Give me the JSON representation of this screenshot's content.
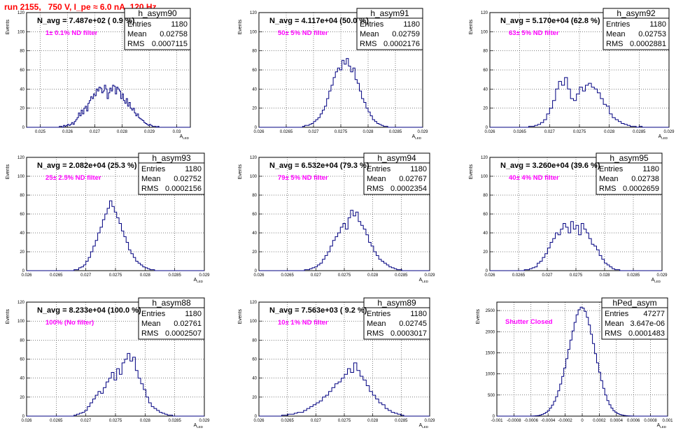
{
  "header": {
    "title": "run 2155,   750 V, I_pe ≈ 6.0 nA, 120 Hz"
  },
  "chart_data": [
    {
      "type": "histogram",
      "name": "h_asym90",
      "stats": {
        "entries": "1180",
        "mean": "0.02758",
        "rms": "0.0007115"
      },
      "annotation": "N_avg = 7.487e+02 ( 0.9 %)",
      "note": "1± 0.1% ND filter",
      "ylabel": "Events",
      "xlabel": "A_LED",
      "xlim": [
        0.0245,
        0.0305
      ],
      "ylim": [
        0,
        120
      ],
      "x_ticks": [
        "0.025",
        "0.026",
        "0.027",
        "0.028",
        "0.029",
        "0.03"
      ],
      "x_tick_values": [
        0.025,
        0.026,
        0.027,
        0.028,
        0.029,
        0.03
      ],
      "y_ticks": [
        "0",
        "20",
        "40",
        "60",
        "80",
        "100",
        "120"
      ],
      "y_tick_values": [
        0,
        20,
        40,
        60,
        80,
        100,
        120
      ],
      "bin_range": [
        0.0255,
        0.0295
      ],
      "values": [
        0,
        0,
        0,
        0,
        1,
        1,
        0,
        2,
        1,
        2,
        3,
        2,
        3,
        5,
        3,
        6,
        8,
        10,
        15,
        12,
        18,
        14,
        20,
        22,
        17,
        25,
        28,
        32,
        30,
        35,
        33,
        40,
        38,
        42,
        41,
        36,
        38,
        44,
        40,
        30,
        36,
        41,
        38,
        44,
        43,
        35,
        42,
        40,
        38,
        30,
        35,
        28,
        25,
        30,
        22,
        26,
        20,
        18,
        20,
        15,
        12,
        14,
        10,
        9,
        8,
        7,
        5,
        4,
        3,
        2,
        3,
        2,
        1,
        1,
        1,
        0,
        1,
        0,
        0,
        0
      ]
    },
    {
      "type": "histogram",
      "name": "h_asym91",
      "stats": {
        "entries": "1180",
        "mean": "0.02759",
        "rms": "0.0002176"
      },
      "annotation": "N_avg = 4.117e+04 (50.0 %)",
      "note": "50± 5% ND filter",
      "ylabel": "Events",
      "xlabel": "A_LED",
      "xlim": [
        0.026,
        0.029
      ],
      "ylim": [
        0,
        120
      ],
      "x_ticks": [
        "0.026",
        "0.0265",
        "0.027",
        "0.0275",
        "0.028",
        "0.0285",
        "0.029"
      ],
      "x_tick_values": [
        0.026,
        0.0265,
        0.027,
        0.0275,
        0.028,
        0.0285,
        0.029
      ],
      "y_ticks": [
        "0",
        "20",
        "40",
        "60",
        "80",
        "100",
        "120"
      ],
      "y_tick_values": [
        0,
        20,
        40,
        60,
        80,
        100,
        120
      ],
      "bin_range": [
        0.0268,
        0.0284
      ],
      "values": [
        1,
        2,
        2,
        3,
        4,
        6,
        8,
        10,
        14,
        18,
        22,
        30,
        38,
        44,
        52,
        58,
        62,
        60,
        70,
        66,
        72,
        64,
        58,
        62,
        50,
        46,
        38,
        30,
        26,
        20,
        16,
        12,
        8,
        6,
        4,
        3,
        2,
        1,
        1,
        0
      ]
    },
    {
      "type": "histogram",
      "name": "h_asym92",
      "stats": {
        "entries": "1180",
        "mean": "0.02753",
        "rms": "0.0002881"
      },
      "annotation": "N_avg = 5.170e+04 (62.8 %)",
      "note": "63± 5% ND filter",
      "ylabel": "Events",
      "xlabel": "A_LED",
      "xlim": [
        0.026,
        0.029
      ],
      "ylim": [
        0,
        120
      ],
      "x_ticks": [
        "0.026",
        "0.0265",
        "0.027",
        "0.0275",
        "0.028",
        "0.0285",
        "0.029"
      ],
      "x_tick_values": [
        0.026,
        0.0265,
        0.027,
        0.0275,
        0.028,
        0.0285,
        0.029
      ],
      "y_ticks": [
        "0",
        "20",
        "40",
        "60",
        "80",
        "100",
        "120"
      ],
      "y_tick_values": [
        0,
        20,
        40,
        60,
        80,
        100,
        120
      ],
      "bin_range": [
        0.0266,
        0.0286
      ],
      "values": [
        0,
        1,
        1,
        2,
        3,
        5,
        8,
        14,
        20,
        28,
        40,
        48,
        44,
        52,
        40,
        30,
        28,
        35,
        42,
        38,
        44,
        46,
        42,
        40,
        36,
        30,
        24,
        22,
        14,
        10,
        8,
        6,
        4,
        3,
        2,
        1,
        1,
        0,
        1,
        0
      ]
    },
    {
      "type": "histogram",
      "name": "h_asym93",
      "stats": {
        "entries": "1180",
        "mean": "0.02752",
        "rms": "0.0002156"
      },
      "annotation": "N_avg = 2.082e+04 (25.3 %)",
      "note": "25± 2.5% ND filter",
      "ylabel": "Events",
      "xlabel": "A_LED",
      "xlim": [
        0.026,
        0.029
      ],
      "ylim": [
        0,
        120
      ],
      "x_ticks": [
        "0.026",
        "0.0265",
        "0.027",
        "0.0275",
        "0.028",
        "0.0285",
        "0.029"
      ],
      "x_tick_values": [
        0.026,
        0.0265,
        0.027,
        0.0275,
        0.028,
        0.0285,
        0.029
      ],
      "y_ticks": [
        "0",
        "20",
        "40",
        "60",
        "80",
        "100",
        "120"
      ],
      "y_tick_values": [
        0,
        20,
        40,
        60,
        80,
        100,
        120
      ],
      "bin_range": [
        0.0268,
        0.0284
      ],
      "values": [
        1,
        1,
        3,
        4,
        6,
        10,
        14,
        20,
        26,
        32,
        40,
        46,
        54,
        60,
        66,
        74,
        68,
        62,
        56,
        50,
        42,
        36,
        30,
        22,
        18,
        14,
        10,
        8,
        6,
        4,
        3,
        2,
        1,
        1,
        0,
        0,
        0,
        0,
        0,
        0
      ]
    },
    {
      "type": "histogram",
      "name": "h_asym94",
      "stats": {
        "entries": "1180",
        "mean": "0.02767",
        "rms": "0.0002354"
      },
      "annotation": "N_avg = 6.532e+04 (79.3 %)",
      "note": "79± 5% ND filter",
      "ylabel": "Events",
      "xlabel": "A_LED",
      "xlim": [
        0.026,
        0.029
      ],
      "ylim": [
        0,
        120
      ],
      "x_ticks": [
        "0.026",
        "0.0265",
        "0.027",
        "0.0275",
        "0.028",
        "0.0285",
        "0.029"
      ],
      "x_tick_values": [
        0.026,
        0.0265,
        0.027,
        0.0275,
        0.028,
        0.0285,
        0.029
      ],
      "y_ticks": [
        "0",
        "20",
        "40",
        "60",
        "80",
        "100",
        "120"
      ],
      "y_tick_values": [
        0,
        20,
        40,
        60,
        80,
        100,
        120
      ],
      "bin_range": [
        0.0268,
        0.0286
      ],
      "values": [
        1,
        1,
        2,
        3,
        4,
        6,
        8,
        12,
        16,
        20,
        26,
        32,
        36,
        40,
        46,
        50,
        44,
        56,
        64,
        58,
        62,
        52,
        48,
        44,
        38,
        30,
        26,
        20,
        16,
        12,
        10,
        8,
        6,
        4,
        3,
        2,
        1,
        1,
        0,
        0
      ]
    },
    {
      "type": "histogram",
      "name": "h_asym95",
      "stats": {
        "entries": "1180",
        "mean": "0.02738",
        "rms": "0.0002659"
      },
      "annotation": "N_avg = 3.260e+04 (39.6 %)",
      "note": "40± 4% ND filter",
      "ylabel": "Events",
      "xlabel": "A_LED",
      "xlim": [
        0.026,
        0.029
      ],
      "ylim": [
        0,
        120
      ],
      "x_ticks": [
        "0.026",
        "0.0265",
        "0.027",
        "0.0275",
        "0.028",
        "0.0285",
        "0.029"
      ],
      "x_tick_values": [
        0.026,
        0.0265,
        0.027,
        0.0275,
        0.028,
        0.0285,
        0.029
      ],
      "y_ticks": [
        "0",
        "20",
        "40",
        "60",
        "80",
        "100",
        "120"
      ],
      "y_tick_values": [
        0,
        20,
        40,
        60,
        80,
        100,
        120
      ],
      "bin_range": [
        0.0266,
        0.0284
      ],
      "values": [
        1,
        1,
        2,
        3,
        4,
        8,
        10,
        14,
        18,
        24,
        30,
        34,
        40,
        38,
        44,
        50,
        46,
        40,
        52,
        44,
        48,
        38,
        50,
        44,
        40,
        34,
        28,
        26,
        22,
        16,
        12,
        8,
        6,
        4,
        2,
        1,
        1,
        0,
        0,
        0
      ]
    },
    {
      "type": "histogram",
      "name": "h_asym88",
      "stats": {
        "entries": "1180",
        "mean": "0.02761",
        "rms": "0.0002507"
      },
      "annotation": "N_avg = 8.233e+04 (100.0 %)",
      "note": "100% (No filter)",
      "ylabel": "Events",
      "xlabel": "A_LED",
      "xlim": [
        0.026,
        0.029
      ],
      "ylim": [
        0,
        120
      ],
      "x_ticks": [
        "0.026",
        "0.0265",
        "0.027",
        "0.0275",
        "0.028",
        "0.0285",
        "0.029"
      ],
      "x_tick_values": [
        0.026,
        0.0265,
        0.027,
        0.0275,
        0.028,
        0.0285,
        0.029
      ],
      "y_ticks": [
        "0",
        "20",
        "40",
        "60",
        "80",
        "100",
        "120"
      ],
      "y_tick_values": [
        0,
        20,
        40,
        60,
        80,
        100,
        120
      ],
      "bin_range": [
        0.0268,
        0.0286
      ],
      "values": [
        1,
        2,
        3,
        4,
        6,
        10,
        14,
        18,
        22,
        26,
        24,
        30,
        36,
        40,
        46,
        38,
        50,
        44,
        56,
        60,
        66,
        58,
        62,
        48,
        40,
        34,
        28,
        20,
        14,
        10,
        8,
        6,
        4,
        3,
        2,
        1,
        1,
        0,
        0,
        0
      ]
    },
    {
      "type": "histogram",
      "name": "h_asym89",
      "stats": {
        "entries": "1180",
        "mean": "0.02745",
        "rms": "0.0003017"
      },
      "annotation": "N_avg = 7.563e+03 ( 9.2 %)",
      "note": "10± 1% ND filter",
      "ylabel": "Events",
      "xlabel": "A_LED",
      "xlim": [
        0.026,
        0.029
      ],
      "ylim": [
        0,
        120
      ],
      "x_ticks": [
        "0.026",
        "0.0265",
        "0.027",
        "0.0275",
        "0.028",
        "0.0285",
        "0.029"
      ],
      "x_tick_values": [
        0.026,
        0.0265,
        0.027,
        0.0275,
        0.028,
        0.0285,
        0.029
      ],
      "y_ticks": [
        "0",
        "20",
        "40",
        "60",
        "80",
        "100",
        "120"
      ],
      "y_tick_values": [
        0,
        20,
        40,
        60,
        80,
        100,
        120
      ],
      "bin_range": [
        0.0264,
        0.0286
      ],
      "values": [
        1,
        1,
        2,
        2,
        3,
        4,
        4,
        6,
        8,
        10,
        12,
        14,
        16,
        20,
        22,
        26,
        30,
        34,
        36,
        40,
        44,
        50,
        46,
        56,
        48,
        42,
        38,
        32,
        26,
        22,
        18,
        14,
        12,
        8,
        6,
        4,
        3,
        2,
        1,
        0
      ]
    },
    {
      "type": "histogram",
      "name": "hPed_asym",
      "stats": {
        "entries": "47277",
        "mean": "3.647e-06",
        "rms": "0.0001483"
      },
      "annotation": "",
      "note": "Shutter Closed",
      "ylabel": "Events",
      "xlabel": "A_LED",
      "xlim": [
        -0.001,
        0.001
      ],
      "ylim": [
        0,
        2700
      ],
      "x_ticks": [
        "-0.001",
        "-0.0008",
        "-0.0006",
        "-0.0004",
        "-0.0002",
        "0",
        "0.0002",
        "0.0004",
        "0.0006",
        "0.0008",
        "0.001"
      ],
      "x_tick_values": [
        -0.001,
        -0.0008,
        -0.0006,
        -0.0004,
        -0.0002,
        0,
        0.0002,
        0.0004,
        0.0006,
        0.0008,
        0.001
      ],
      "y_ticks": [
        "0",
        "500",
        "1000",
        "1500",
        "2000",
        "2500"
      ],
      "y_tick_values": [
        0,
        500,
        1000,
        1500,
        2000,
        2500
      ],
      "bin_range": [
        -0.0006,
        0.0006
      ],
      "values": [
        2,
        4,
        8,
        14,
        24,
        40,
        60,
        90,
        130,
        190,
        260,
        350,
        460,
        600,
        760,
        940,
        1140,
        1360,
        1580,
        1800,
        2020,
        2220,
        2400,
        2520,
        2580,
        2560,
        2480,
        2340,
        2160,
        1940,
        1720,
        1480,
        1260,
        1040,
        840,
        660,
        500,
        370,
        270,
        190,
        130,
        90,
        60,
        40,
        26,
        16,
        10,
        6,
        3,
        2
      ]
    }
  ]
}
